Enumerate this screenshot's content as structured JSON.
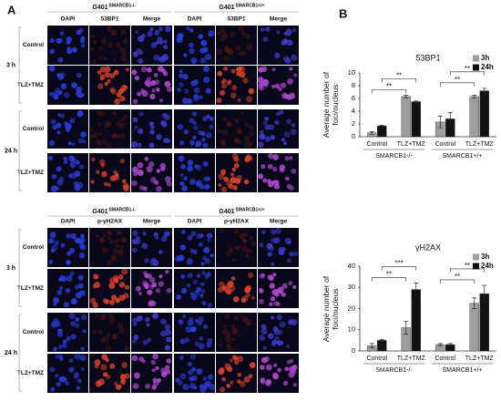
{
  "panel_a": {
    "label": "A",
    "blocks": [
      {
        "groups": [
          {
            "name": "G401",
            "superscript": "SMARCB1-/-"
          },
          {
            "name": "G401",
            "superscript": "SMARCB1+/+"
          }
        ],
        "columns": [
          "DAPI",
          "53BP1",
          "Merge",
          "DAPI",
          "53BP1",
          "Merge"
        ],
        "times": [
          "3 h",
          "24 h"
        ],
        "rows": [
          "Control",
          "TLZ+TMZ",
          "Control",
          "TLZ+TMZ"
        ]
      },
      {
        "groups": [
          {
            "name": "G401",
            "superscript": "SMARCB1-/-"
          },
          {
            "name": "G401",
            "superscript": "SMARCB1+/+"
          }
        ],
        "columns": [
          "DAPI",
          "p-γH2AX",
          "Merge",
          "DAPI",
          "p-γH2AX",
          "Merge"
        ],
        "times": [
          "3 h",
          "24 h"
        ],
        "rows": [
          "Control",
          "TLZ+TMZ",
          "Control",
          "TLZ+TMZ"
        ]
      }
    ]
  },
  "panel_b": {
    "label": "B"
  },
  "chart_data": [
    {
      "type": "bar",
      "title": "53BP1",
      "y_label": "Average number of foci/nucleus",
      "categories": [
        "Control",
        "TLZ+TMZ",
        "Control",
        "TLZ+TMZ"
      ],
      "groups": [
        "SMARCB1-/-",
        "SMARCB1+/+"
      ],
      "series": [
        {
          "name": "3h",
          "color": "#9e9e9e",
          "values": [
            0.6,
            6.3,
            2.3,
            6.3
          ],
          "errors": [
            0.2,
            0.2,
            0.9,
            0.2
          ]
        },
        {
          "name": "24h",
          "color": "#111111",
          "values": [
            1.7,
            5.5,
            2.8,
            7.2
          ],
          "errors": [
            0.1,
            0.1,
            1.0,
            0.4
          ]
        }
      ],
      "ylim": [
        0,
        10
      ],
      "yticks": [
        0,
        2,
        4,
        6,
        8,
        10
      ],
      "annotations": [
        "**",
        "**",
        "**",
        "**"
      ]
    },
    {
      "type": "bar",
      "title": "γH2AX",
      "y_label": "Average number of foci/nucleus",
      "categories": [
        "Control",
        "TLZ+TMZ",
        "Control",
        "TLZ+TMZ"
      ],
      "groups": [
        "SMARCB1-/-",
        "SMARCB1+/+"
      ],
      "series": [
        {
          "name": "3h",
          "color": "#9e9e9e",
          "values": [
            2.5,
            11,
            3,
            22.5
          ],
          "errors": [
            1,
            3,
            0.5,
            2.5
          ]
        },
        {
          "name": "24h",
          "color": "#111111",
          "values": [
            5,
            29,
            3,
            27
          ],
          "errors": [
            0.5,
            3,
            0.5,
            4
          ]
        }
      ],
      "ylim": [
        0,
        40
      ],
      "yticks": [
        0,
        10,
        20,
        30,
        40
      ],
      "annotations": [
        "**",
        "***",
        "**",
        "**"
      ]
    }
  ]
}
